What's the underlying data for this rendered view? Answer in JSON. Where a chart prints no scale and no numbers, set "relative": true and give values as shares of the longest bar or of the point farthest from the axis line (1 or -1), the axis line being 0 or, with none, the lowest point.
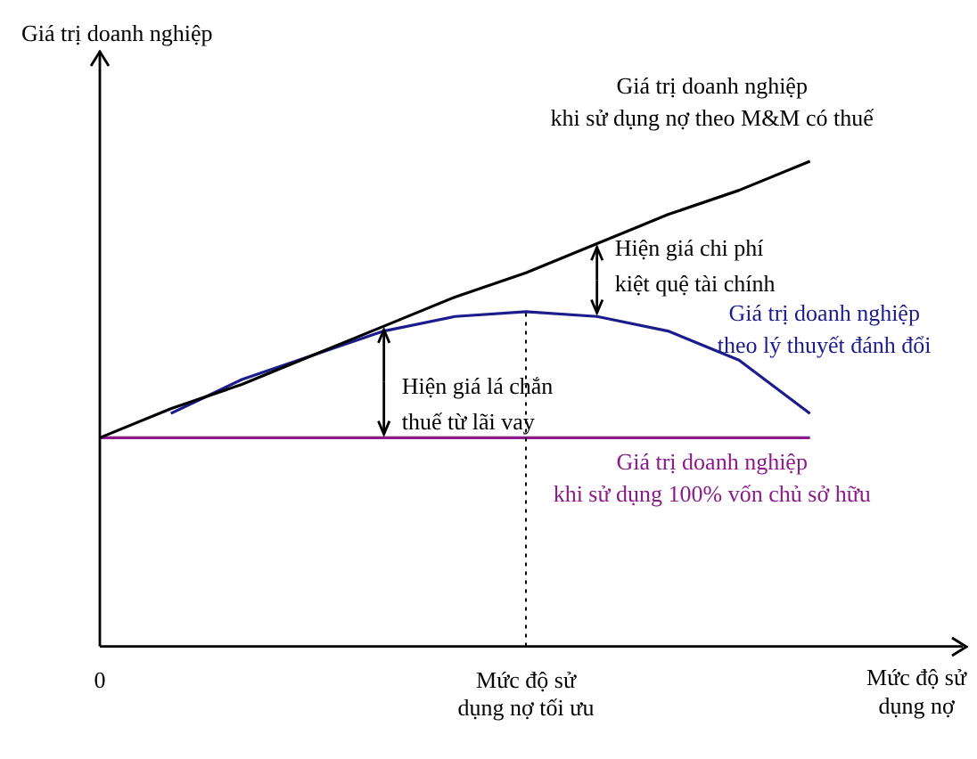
{
  "chart_data": {
    "type": "line",
    "relative": true,
    "xlabel": "Mức độ sử dụng nợ",
    "ylabel": "Giá trị doanh nghiệp",
    "categories": [
      "0",
      null,
      null,
      null,
      null,
      null,
      "Mức độ sử dụng nợ tối ưu",
      null,
      null,
      null,
      null,
      null,
      null
    ],
    "series": [
      {
        "name": "Giá trị doanh nghiệp khi sử dụng nợ theo M&M có thuế",
        "color": "#000000",
        "values": [
          0.43,
          0.49,
          0.54,
          0.6,
          0.66,
          0.72,
          0.77,
          0.83,
          0.89,
          0.94,
          1.0,
          null,
          null
        ]
      },
      {
        "name": "Giá trị doanh nghiệp theo lý thuyết đánh đổi",
        "color": "#1c1c8c",
        "values": [
          null,
          0.48,
          0.55,
          0.6,
          0.65,
          0.68,
          0.69,
          0.68,
          0.65,
          0.59,
          0.48,
          null,
          null
        ]
      },
      {
        "name": "Giá trị doanh nghiệp khi sử dụng 100% vốn chủ sở hữu",
        "color": "#8b1a8b",
        "values": [
          0.43,
          0.43,
          0.43,
          0.43,
          0.43,
          0.43,
          0.43,
          0.43,
          0.43,
          0.43,
          0.43,
          null,
          null
        ]
      }
    ],
    "ref_lines": [
      {
        "axis": "x",
        "value": "Mức độ sử dụng nợ tối ưu",
        "line_style": "dotted",
        "color": "#000000"
      }
    ],
    "annotations": [
      "Hiện giá lá chắn thuế từ lãi vay",
      "Hiện giá chi phí kiệt quệ tài chính"
    ],
    "legend": false,
    "grid": false,
    "marker": "none"
  }
}
